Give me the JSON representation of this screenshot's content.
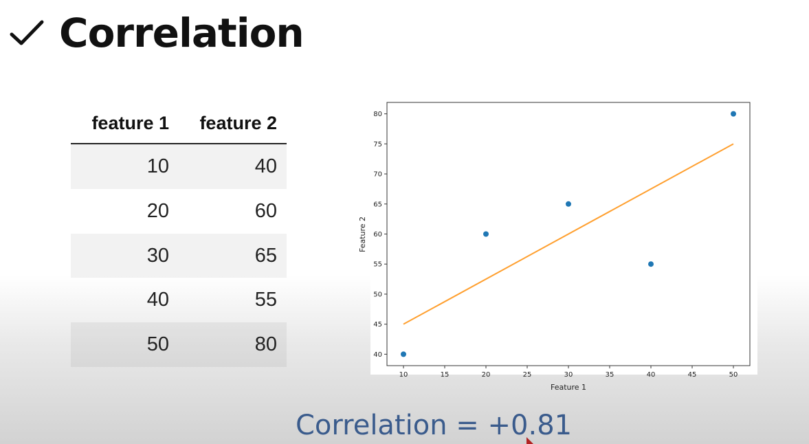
{
  "title": "Correlation",
  "table": {
    "headers": [
      "feature 1",
      "feature 2"
    ],
    "rows": [
      [
        "10",
        "40"
      ],
      [
        "20",
        "60"
      ],
      [
        "30",
        "65"
      ],
      [
        "40",
        "55"
      ],
      [
        "50",
        "80"
      ]
    ]
  },
  "chart_data": {
    "type": "scatter",
    "xlabel": "Feature 1",
    "ylabel": "Feature 2",
    "xlim": [
      8,
      52
    ],
    "ylim": [
      38.1,
      81.9
    ],
    "xticks": [
      10,
      15,
      20,
      25,
      30,
      35,
      40,
      45,
      50
    ],
    "yticks": [
      40,
      45,
      50,
      55,
      60,
      65,
      70,
      75,
      80
    ],
    "series": [
      {
        "type": "scatter",
        "color": "#1f77b4",
        "points": [
          [
            10,
            40
          ],
          [
            20,
            60
          ],
          [
            30,
            65
          ],
          [
            40,
            55
          ],
          [
            50,
            80
          ]
        ]
      },
      {
        "type": "line",
        "color": "#ff9f2e",
        "points": [
          [
            10,
            45
          ],
          [
            50,
            75
          ]
        ]
      }
    ]
  },
  "footer": "Correlation = +0.81",
  "colors": {
    "footer": "#3a5b8c",
    "points": "#1f77b4",
    "fit_line": "#ff9f2e"
  }
}
